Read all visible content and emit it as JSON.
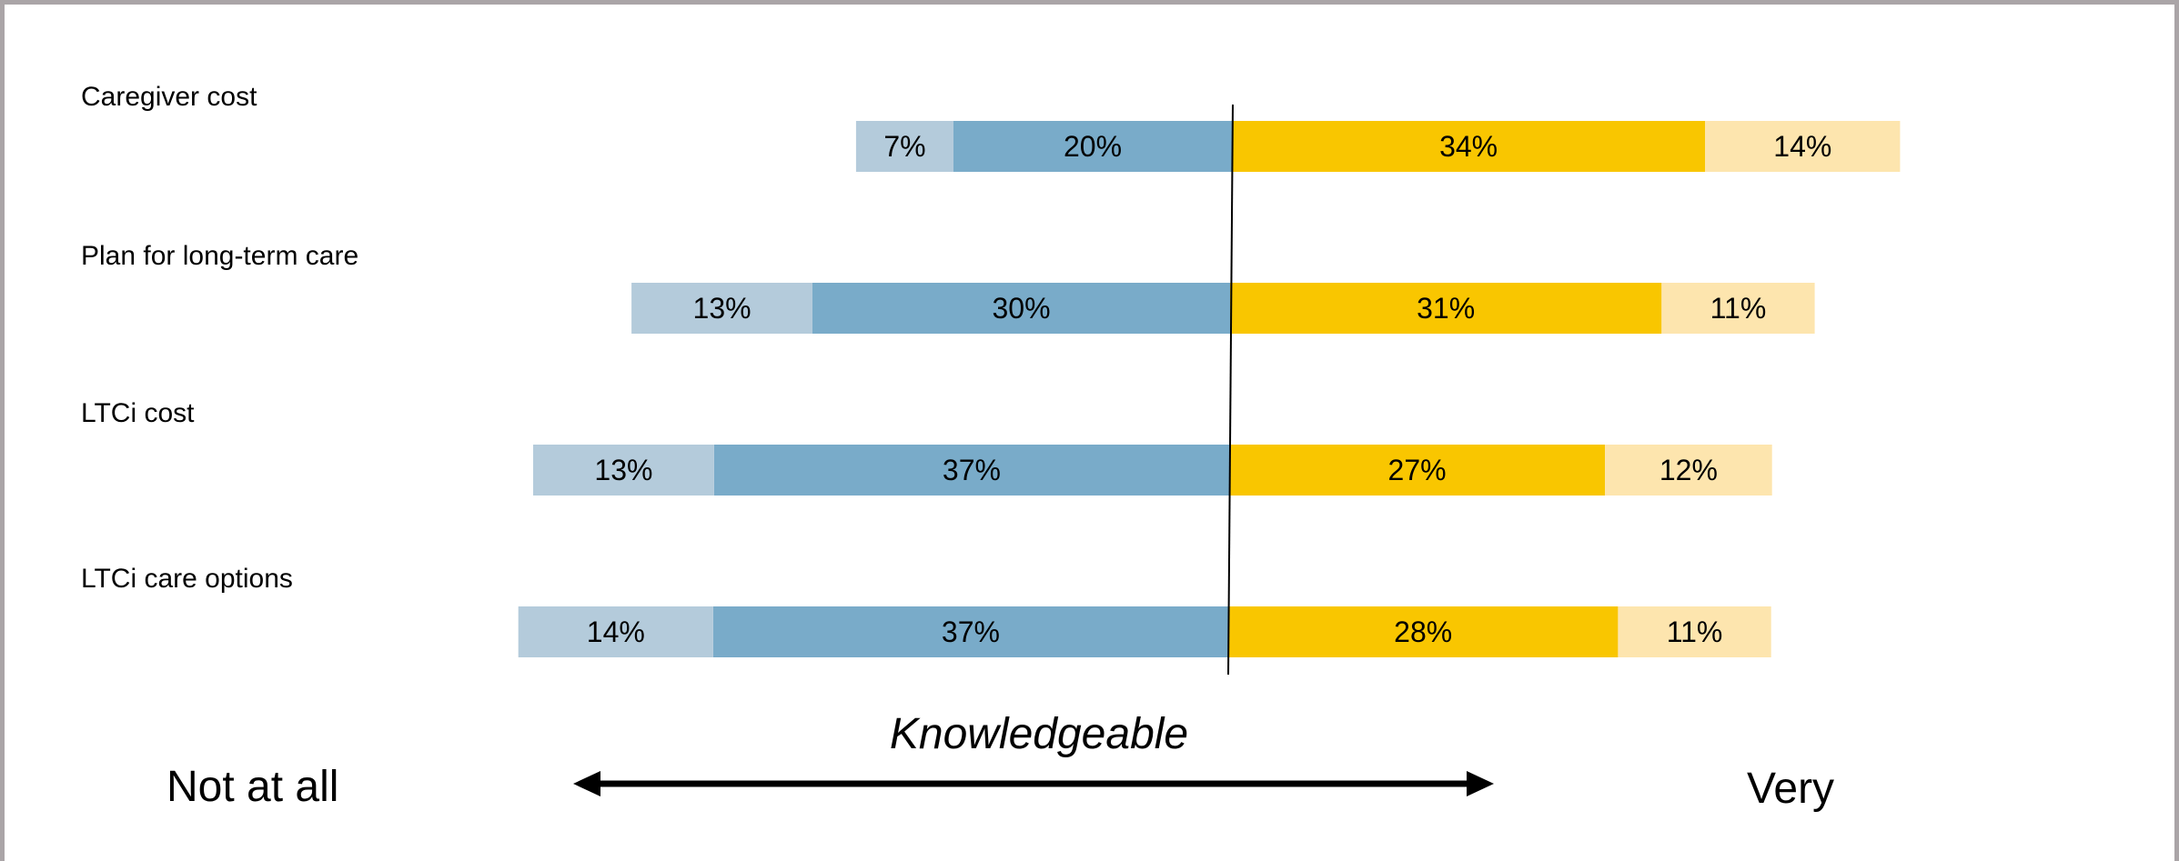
{
  "chart_data": {
    "type": "bar",
    "orientation": "horizontal",
    "stacked": "diverging",
    "categories": [
      "Caregiver cost",
      "Plan for long-term care",
      "LTCi cost",
      "LTCi care options"
    ],
    "series": [
      {
        "color": "#b4cbdb",
        "side": "negative",
        "values": [
          7,
          13,
          13,
          14
        ]
      },
      {
        "color": "#79abc9",
        "side": "negative",
        "values": [
          20,
          30,
          37,
          37
        ]
      },
      {
        "color": "#f9c600",
        "side": "positive",
        "values": [
          34,
          31,
          27,
          28
        ]
      },
      {
        "color": "#fde5ae",
        "side": "positive",
        "values": [
          14,
          11,
          12,
          11
        ]
      }
    ],
    "value_suffix": "%",
    "xlabel": "Knowledgeable",
    "scale_left_label": "Not at all",
    "scale_right_label": "Very",
    "grid": false,
    "legend": "none"
  }
}
